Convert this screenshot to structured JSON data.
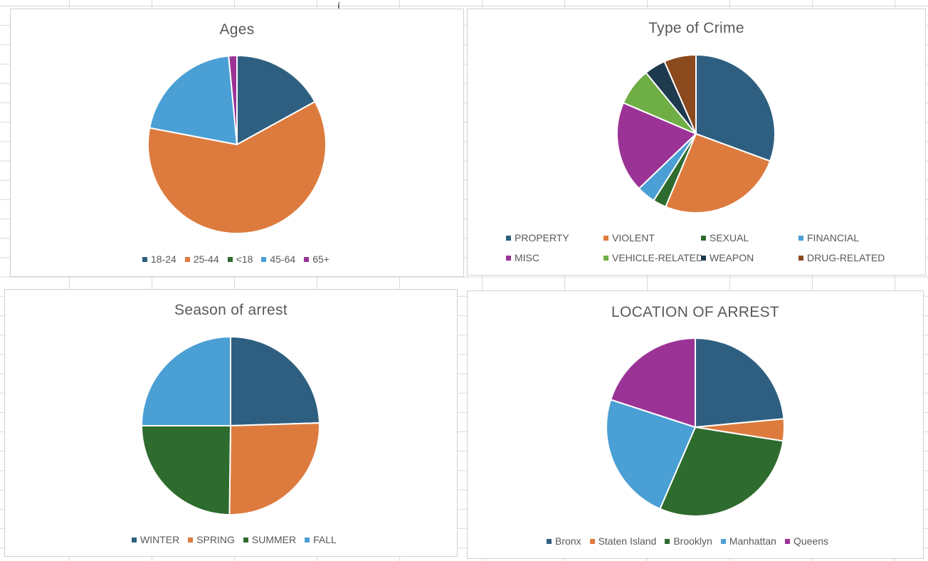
{
  "sheet": {
    "cell_fragment": "í"
  },
  "charts": [
    {
      "id": "ages",
      "chart_data": {
        "type": "pie",
        "title": "Ages",
        "categories": [
          "18-24",
          "25-44",
          "<18",
          "45-64",
          "65+"
        ],
        "values": [
          17,
          61,
          0,
          20.5,
          1.5
        ],
        "colors": [
          "#2E5F80",
          "#DD7B3E",
          "#2E6B2E",
          "#4A9FD4",
          "#9B3396"
        ],
        "legend_position": "bottom"
      }
    },
    {
      "id": "crime",
      "chart_data": {
        "type": "pie",
        "title": "Type of Crime",
        "categories": [
          "PROPERTY",
          "VIOLENT",
          "SEXUAL",
          "FINANCIAL",
          "MISC",
          "VEHICLE-RELATED",
          "WEAPON",
          "DRUG-RELATED"
        ],
        "values": [
          28,
          23.5,
          2.5,
          3.5,
          17,
          7,
          4,
          6
        ],
        "colors": [
          "#2E5F80",
          "#DD7B3E",
          "#2E6B2E",
          "#4A9FD4",
          "#9B3396",
          "#6FAE45",
          "#1D3A4F",
          "#8B4A1E"
        ],
        "legend_position": "bottom"
      }
    },
    {
      "id": "season",
      "chart_data": {
        "type": "pie",
        "title": "Season of arrest",
        "categories": [
          "WINTER",
          "SPRING",
          "SUMMER",
          "FALL"
        ],
        "values": [
          24.5,
          25.7,
          24.8,
          25
        ],
        "colors": [
          "#2E5F80",
          "#DD7B3E",
          "#2E6B2E",
          "#4A9FD4"
        ],
        "legend_position": "bottom"
      }
    },
    {
      "id": "location",
      "chart_data": {
        "type": "pie",
        "title": "LOCATION OF ARREST",
        "categories": [
          "Bronx",
          "Staten Island",
          "Brooklyn",
          "Manhattan",
          "Queens"
        ],
        "values": [
          23.5,
          4,
          29,
          23.5,
          20
        ],
        "colors": [
          "#2E5F80",
          "#DD7B3E",
          "#2E6B2E",
          "#4A9FD4",
          "#9B3396"
        ],
        "legend_position": "bottom"
      }
    }
  ]
}
